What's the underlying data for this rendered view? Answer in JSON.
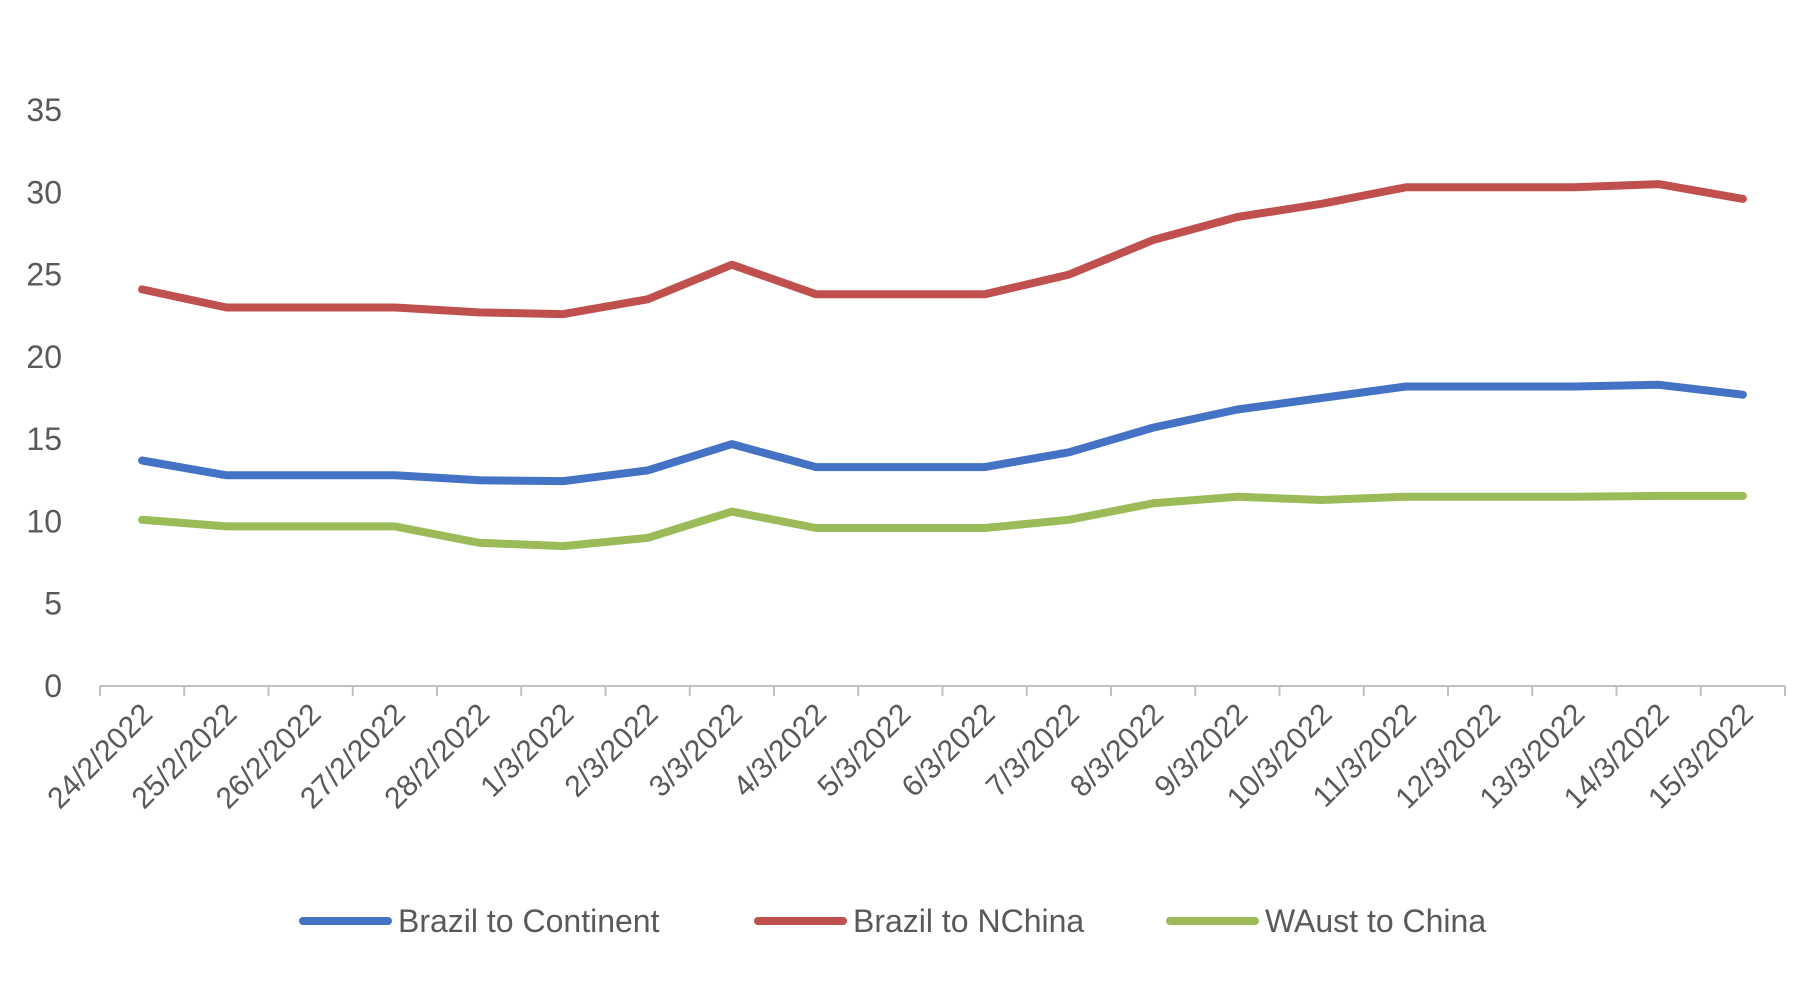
{
  "chart_data": {
    "type": "line",
    "title": "",
    "xlabel": "",
    "ylabel": "",
    "ylim": [
      0,
      35
    ],
    "yticks": [
      0,
      5,
      10,
      15,
      20,
      25,
      30,
      35
    ],
    "grid": false,
    "legend_position": "bottom",
    "categories": [
      "24/2/2022",
      "25/2/2022",
      "26/2/2022",
      "27/2/2022",
      "28/2/2022",
      "1/3/2022",
      "2/3/2022",
      "3/3/2022",
      "4/3/2022",
      "5/3/2022",
      "6/3/2022",
      "7/3/2022",
      "8/3/2022",
      "9/3/2022",
      "10/3/2022",
      "11/3/2022",
      "12/3/2022",
      "13/3/2022",
      "14/3/2022",
      "15/3/2022"
    ],
    "series": [
      {
        "name": "Brazil to Continent",
        "color": "#4472C4",
        "values": [
          13.7,
          12.8,
          12.8,
          12.8,
          12.5,
          12.45,
          13.1,
          14.7,
          13.3,
          13.3,
          13.3,
          14.2,
          15.7,
          16.8,
          17.5,
          18.2,
          18.2,
          18.2,
          18.3,
          17.7
        ]
      },
      {
        "name": "Brazil to NChina",
        "color": "#C0504D",
        "values": [
          24.1,
          23.0,
          23.0,
          23.0,
          22.7,
          22.6,
          23.5,
          25.6,
          23.8,
          23.8,
          23.8,
          25.0,
          27.1,
          28.5,
          29.3,
          30.3,
          30.3,
          30.3,
          30.5,
          29.6
        ]
      },
      {
        "name": "WAust to China",
        "color": "#9BBB59",
        "values": [
          10.1,
          9.7,
          9.7,
          9.7,
          8.7,
          8.5,
          9.0,
          10.6,
          9.6,
          9.6,
          9.6,
          10.1,
          11.1,
          11.5,
          11.3,
          11.5,
          11.5,
          11.5,
          11.55,
          11.55
        ]
      }
    ]
  }
}
